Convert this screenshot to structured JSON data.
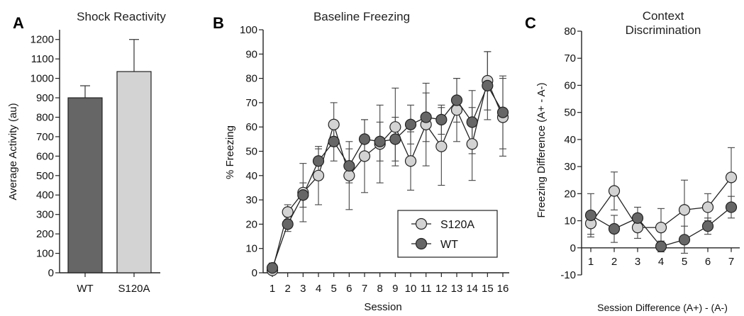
{
  "chart_data": [
    {
      "panel": "A",
      "type": "bar",
      "title": "Shock Reactivity",
      "ylabel": "Average Activity (au)",
      "xlabel": "",
      "ylim": [
        0,
        1250
      ],
      "yticks": [
        0,
        100,
        200,
        300,
        400,
        500,
        600,
        700,
        800,
        900,
        1000,
        1100,
        1200
      ],
      "categories": [
        "WT",
        "S120A"
      ],
      "values": [
        900,
        1035
      ],
      "errors": [
        62,
        165
      ],
      "colors": [
        "#666666",
        "#d3d3d3"
      ]
    },
    {
      "panel": "B",
      "type": "line",
      "title": "Baseline Freezing",
      "xlabel": "Session",
      "ylabel": "% Freezing",
      "xlim": [
        1,
        16
      ],
      "ylim": [
        0,
        100
      ],
      "yticks": [
        0,
        10,
        20,
        30,
        40,
        50,
        60,
        70,
        80,
        90,
        100
      ],
      "x": [
        1,
        2,
        3,
        4,
        5,
        6,
        7,
        8,
        9,
        10,
        11,
        12,
        13,
        14,
        15,
        16
      ],
      "legend_position": "bottom-right",
      "series": [
        {
          "name": "S120A",
          "color": "#d3d3d3",
          "values": [
            1,
            25,
            33,
            40,
            61,
            40,
            48,
            53,
            60,
            46,
            61,
            52,
            67,
            53,
            79,
            64
          ],
          "errors": [
            1,
            3,
            12,
            12,
            9,
            14,
            15,
            16,
            16,
            12,
            17,
            16,
            13,
            15,
            12,
            16
          ]
        },
        {
          "name": "WT",
          "color": "#666666",
          "values": [
            2,
            20,
            32,
            46,
            54,
            44,
            55,
            54,
            55,
            61,
            64,
            63,
            71,
            62,
            77,
            66
          ],
          "errors": [
            2,
            3,
            5,
            5,
            8,
            7,
            8,
            8,
            9,
            8,
            10,
            6,
            9,
            13,
            14,
            15
          ]
        }
      ]
    },
    {
      "panel": "C",
      "type": "line",
      "title": "Context Discrimination",
      "title_lines": [
        "Context",
        "Discrimination"
      ],
      "xlabel": "Session Difference (A+) - (A-)",
      "ylabel": "Freezing Difference (A+ - A-)",
      "xlim": [
        1,
        7
      ],
      "ylim": [
        -10,
        80
      ],
      "yticks": [
        -10,
        0,
        10,
        20,
        30,
        40,
        50,
        60,
        70,
        80
      ],
      "x": [
        1,
        2,
        3,
        4,
        5,
        6,
        7
      ],
      "series": [
        {
          "name": "S120A",
          "color": "#d3d3d3",
          "values": [
            9,
            21,
            7.5,
            7.5,
            14,
            15,
            26
          ],
          "errors": [
            4,
            7,
            4,
            7,
            11,
            5,
            11
          ]
        },
        {
          "name": "WT",
          "color": "#666666",
          "values": [
            12,
            7,
            11,
            0.5,
            3,
            8,
            15
          ],
          "errors": [
            8,
            5,
            4,
            2,
            5,
            3,
            4
          ]
        }
      ]
    }
  ]
}
